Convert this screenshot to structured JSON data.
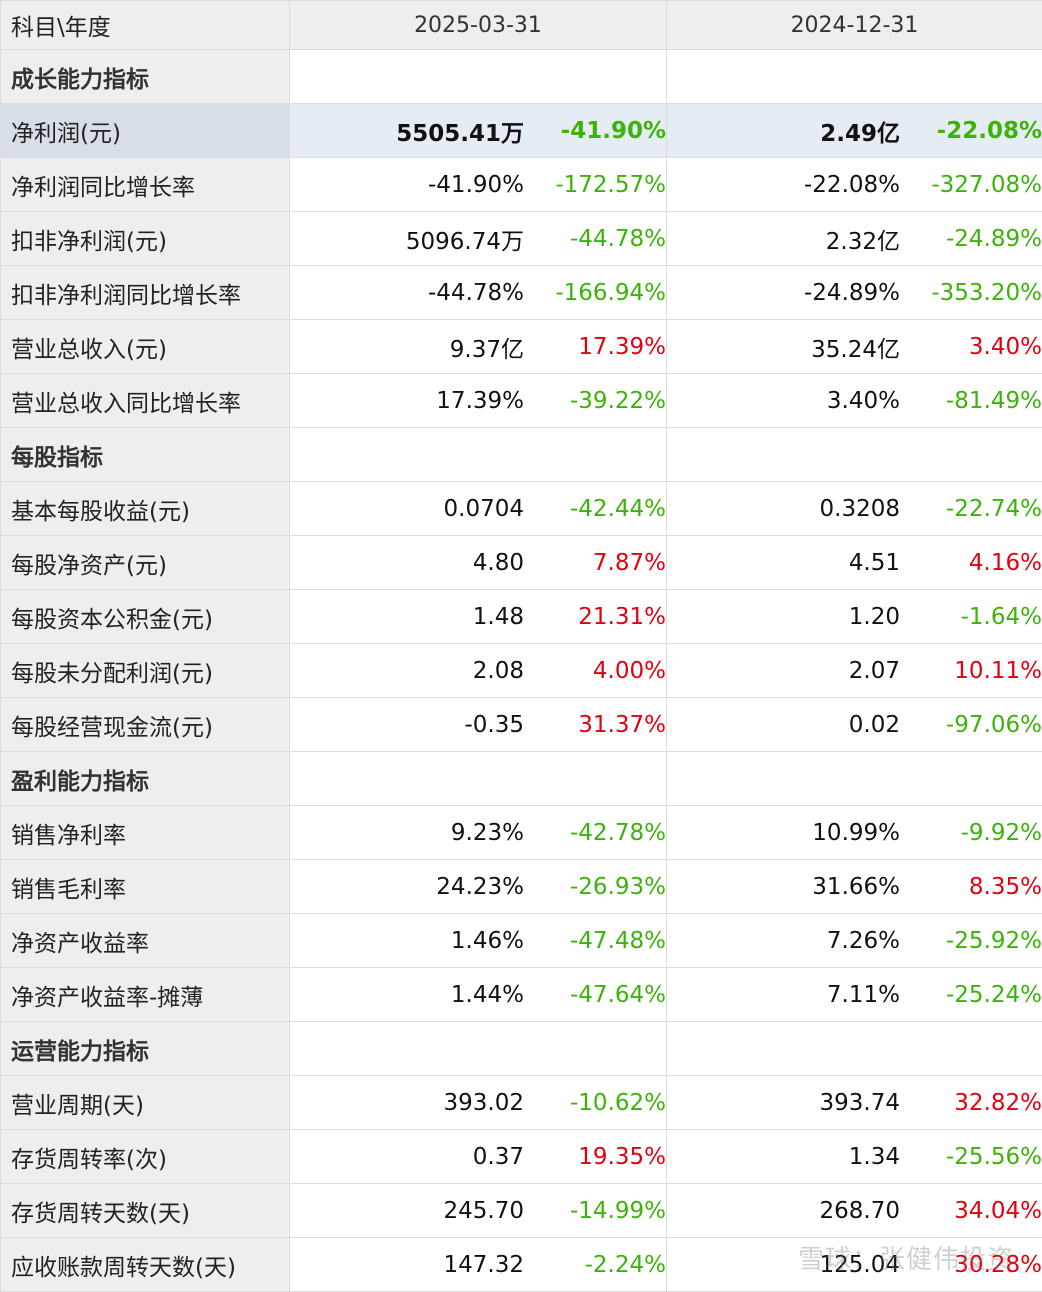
{
  "header": {
    "label": "科目\\年度",
    "years": [
      "2025-03-31",
      "2024-12-31"
    ]
  },
  "colors": {
    "positive": "#e3000f",
    "negative": "#3cb30a"
  },
  "watermark": "雪球：张健伟投资",
  "rows": [
    {
      "type": "section",
      "label": "成长能力指标"
    },
    {
      "type": "data",
      "label": "净利润(元)",
      "highlight": true,
      "v1": "5505.41万",
      "p1": "-41.90%",
      "v2": "2.49亿",
      "p2": "-22.08%"
    },
    {
      "type": "data",
      "label": "净利润同比增长率",
      "v1": "-41.90%",
      "p1": "-172.57%",
      "v2": "-22.08%",
      "p2": "-327.08%"
    },
    {
      "type": "data",
      "label": "扣非净利润(元)",
      "v1": "5096.74万",
      "p1": "-44.78%",
      "v2": "2.32亿",
      "p2": "-24.89%"
    },
    {
      "type": "data",
      "label": "扣非净利润同比增长率",
      "v1": "-44.78%",
      "p1": "-166.94%",
      "v2": "-24.89%",
      "p2": "-353.20%"
    },
    {
      "type": "data",
      "label": "营业总收入(元)",
      "v1": "9.37亿",
      "p1": "17.39%",
      "v2": "35.24亿",
      "p2": "3.40%"
    },
    {
      "type": "data",
      "label": "营业总收入同比增长率",
      "v1": "17.39%",
      "p1": "-39.22%",
      "v2": "3.40%",
      "p2": "-81.49%"
    },
    {
      "type": "section",
      "label": "每股指标"
    },
    {
      "type": "data",
      "label": "基本每股收益(元)",
      "v1": "0.0704",
      "p1": "-42.44%",
      "v2": "0.3208",
      "p2": "-22.74%"
    },
    {
      "type": "data",
      "label": "每股净资产(元)",
      "v1": "4.80",
      "p1": "7.87%",
      "v2": "4.51",
      "p2": "4.16%"
    },
    {
      "type": "data",
      "label": "每股资本公积金(元)",
      "v1": "1.48",
      "p1": "21.31%",
      "v2": "1.20",
      "p2": "-1.64%"
    },
    {
      "type": "data",
      "label": "每股未分配利润(元)",
      "v1": "2.08",
      "p1": "4.00%",
      "v2": "2.07",
      "p2": "10.11%"
    },
    {
      "type": "data",
      "label": "每股经营现金流(元)",
      "v1": "-0.35",
      "p1": "31.37%",
      "v2": "0.02",
      "p2": "-97.06%"
    },
    {
      "type": "section",
      "label": "盈利能力指标"
    },
    {
      "type": "data",
      "label": "销售净利率",
      "v1": "9.23%",
      "p1": "-42.78%",
      "v2": "10.99%",
      "p2": "-9.92%"
    },
    {
      "type": "data",
      "label": "销售毛利率",
      "v1": "24.23%",
      "p1": "-26.93%",
      "v2": "31.66%",
      "p2": "8.35%"
    },
    {
      "type": "data",
      "label": "净资产收益率",
      "v1": "1.46%",
      "p1": "-47.48%",
      "v2": "7.26%",
      "p2": "-25.92%"
    },
    {
      "type": "data",
      "label": "净资产收益率-摊薄",
      "v1": "1.44%",
      "p1": "-47.64%",
      "v2": "7.11%",
      "p2": "-25.24%"
    },
    {
      "type": "section",
      "label": "运营能力指标"
    },
    {
      "type": "data",
      "label": "营业周期(天)",
      "v1": "393.02",
      "p1": "-10.62%",
      "v2": "393.74",
      "p2": "32.82%"
    },
    {
      "type": "data",
      "label": "存货周转率(次)",
      "v1": "0.37",
      "p1": "19.35%",
      "v2": "1.34",
      "p2": "-25.56%"
    },
    {
      "type": "data",
      "label": "存货周转天数(天)",
      "v1": "245.70",
      "p1": "-14.99%",
      "v2": "268.70",
      "p2": "34.04%"
    },
    {
      "type": "data",
      "label": "应收账款周转天数(天)",
      "v1": "147.32",
      "p1": "-2.24%",
      "v2": "125.04",
      "p2": "30.28%"
    }
  ]
}
